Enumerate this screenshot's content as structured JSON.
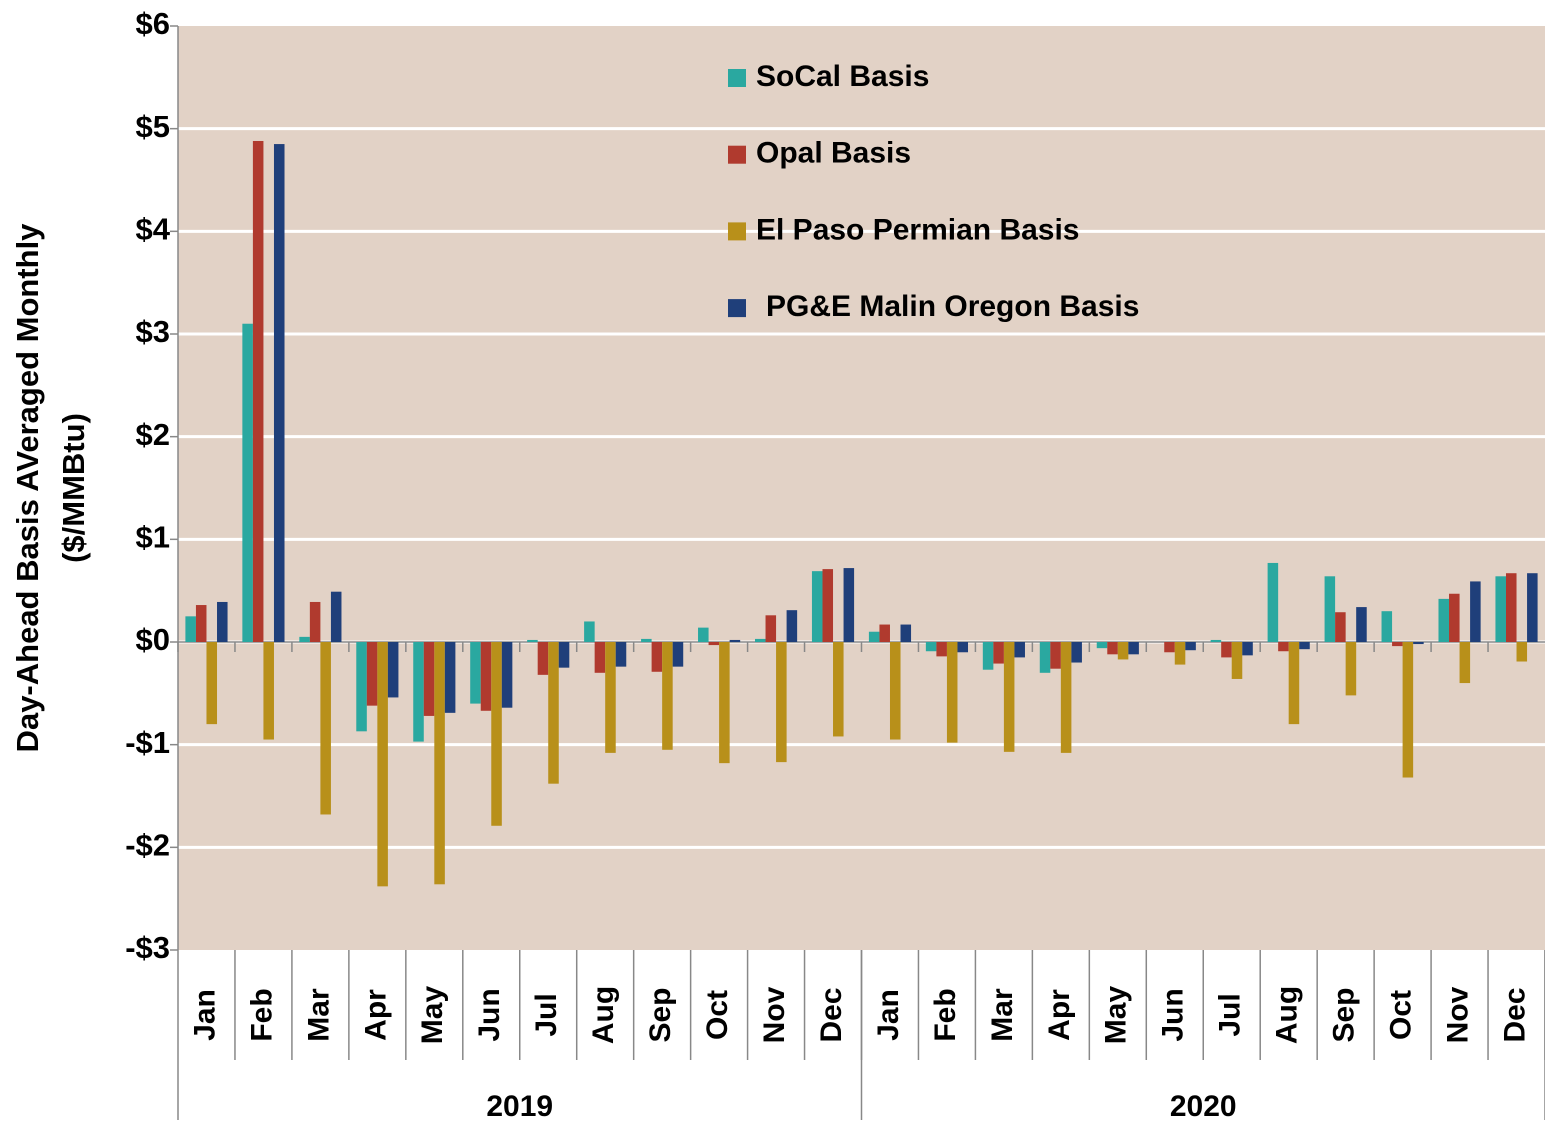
{
  "chart_data": {
    "type": "bar",
    "ylabel": [
      "Day-Ahead Basis AVeraged Monthly",
      "($/MMBtu)"
    ],
    "categories": [
      "Jan",
      "Feb",
      "Mar",
      "Apr",
      "May",
      "Jun",
      "Jul",
      "Aug",
      "Sep",
      "Oct",
      "Nov",
      "Dec",
      "Jan",
      "Feb",
      "Mar",
      "Apr",
      "May",
      "Jun",
      "Jul",
      "Aug",
      "Sep",
      "Oct",
      "Nov",
      "Dec"
    ],
    "groups": [
      "2019",
      "2020"
    ],
    "series": [
      {
        "name": "SoCal Basis",
        "color": "#2aa8a0",
        "values": [
          0.25,
          3.1,
          0.05,
          -0.87,
          -0.97,
          -0.6,
          0.02,
          0.2,
          0.03,
          0.14,
          0.03,
          0.69,
          0.1,
          -0.09,
          -0.27,
          -0.3,
          -0.06,
          0,
          0.02,
          0.77,
          0.64,
          0.3,
          0.42,
          0.64
        ]
      },
      {
        "name": "Opal Basis",
        "color": "#b03a2e",
        "values": [
          0.36,
          4.88,
          0.39,
          -0.62,
          -0.72,
          -0.67,
          -0.32,
          -0.3,
          -0.29,
          -0.03,
          0.26,
          0.71,
          0.17,
          -0.14,
          -0.21,
          -0.26,
          -0.12,
          -0.1,
          -0.15,
          -0.09,
          0.29,
          -0.04,
          0.47,
          0.67
        ]
      },
      {
        "name": "El Paso Permian Basis",
        "color": "#b8901a",
        "values": [
          -0.8,
          -0.95,
          -1.68,
          -2.38,
          -2.36,
          -1.79,
          -1.38,
          -1.08,
          -1.05,
          -1.18,
          -1.17,
          -0.92,
          -0.95,
          -0.98,
          -1.07,
          -1.08,
          -0.17,
          -0.22,
          -0.36,
          -0.8,
          -0.52,
          -1.32,
          -0.4,
          -0.19
        ]
      },
      {
        "name": "PG&E Malin Oregon Basis",
        "color": "#1f3f7a",
        "values": [
          0.39,
          4.85,
          0.49,
          -0.54,
          -0.69,
          -0.64,
          -0.25,
          -0.24,
          -0.24,
          0.02,
          0.31,
          0.72,
          0.17,
          -0.1,
          -0.15,
          -0.2,
          -0.12,
          -0.08,
          -0.13,
          -0.07,
          0.34,
          -0.02,
          0.59,
          0.67
        ]
      }
    ],
    "ylim": [
      -3,
      6
    ],
    "yticks": [
      {
        "value": -3,
        "label": "-$3"
      },
      {
        "value": -2,
        "label": "-$2"
      },
      {
        "value": -1,
        "label": "-$1"
      },
      {
        "value": 0,
        "label": "$0"
      },
      {
        "value": 1,
        "label": "$1"
      },
      {
        "value": 2,
        "label": "$2"
      },
      {
        "value": 3,
        "label": "$3"
      },
      {
        "value": 4,
        "label": "$4"
      },
      {
        "value": 5,
        "label": "$5"
      },
      {
        "value": 6,
        "label": "$6"
      }
    ],
    "grid": true,
    "legend": "top"
  }
}
